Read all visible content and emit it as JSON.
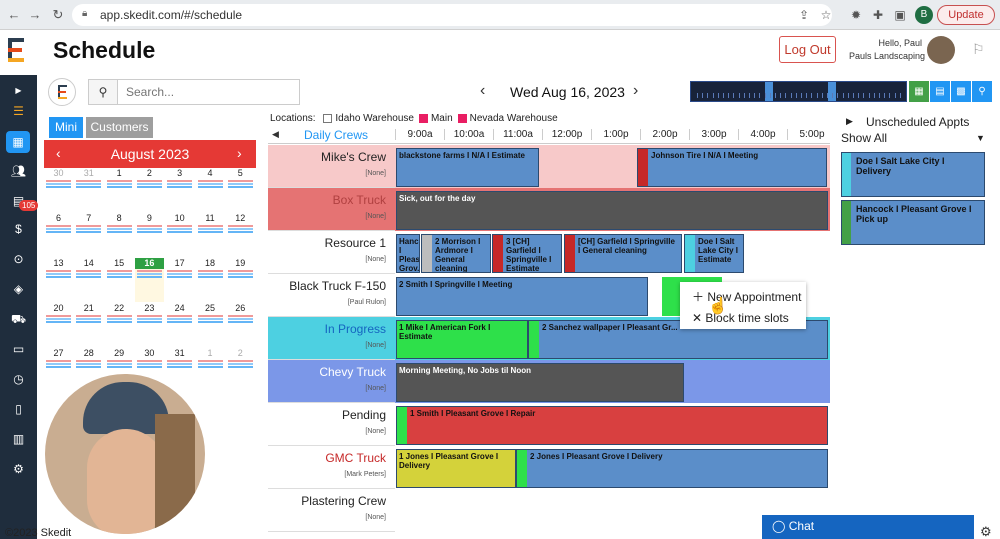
{
  "browser": {
    "url": "app.skedit.com/#/schedule",
    "profile_initial": "B",
    "update_label": "Update"
  },
  "header": {
    "title": "Schedule",
    "logout_label": "Log Out",
    "greeting": "Hello, Paul",
    "company": "Pauls Landscaping"
  },
  "sidebar": {
    "badge": "105"
  },
  "toolbar": {
    "search_placeholder": "Search...",
    "date": "Wed Aug 16, 2023"
  },
  "calendar": {
    "tab_mini": "Mini",
    "tab_customers": "Customers",
    "month": "August 2023",
    "today": "16",
    "days": [
      "30",
      "31",
      "1",
      "2",
      "3",
      "4",
      "5",
      "6",
      "7",
      "8",
      "9",
      "10",
      "11",
      "12",
      "13",
      "14",
      "15",
      "16",
      "17",
      "18",
      "19",
      "20",
      "21",
      "22",
      "23",
      "24",
      "25",
      "26",
      "27",
      "28",
      "29",
      "30",
      "31",
      "1",
      "2"
    ]
  },
  "locations": {
    "label": "Locations:",
    "items": [
      {
        "name": "Idaho Warehouse",
        "checked": false
      },
      {
        "name": "Main",
        "checked": true
      },
      {
        "name": "Nevada Warehouse",
        "checked": true
      }
    ]
  },
  "scheduler": {
    "crews_label": "Daily Crews",
    "hours": [
      "9:00a",
      "10:00a",
      "11:00a",
      "12:00p",
      "1:00p",
      "2:00p",
      "3:00p",
      "4:00p",
      "5:00p"
    ],
    "rows": [
      {
        "name": "Mike's Crew",
        "sub": "[None]",
        "name_color": "#222"
      },
      {
        "name": "Box Truck",
        "sub": "[None]",
        "name_color": "#b04040"
      },
      {
        "name": "Resource 1",
        "sub": "[None]",
        "name_color": "#222"
      },
      {
        "name": "Black Truck F-150",
        "sub": "[Paul Rulon]",
        "name_color": "#222"
      },
      {
        "name": "In Progress",
        "sub": "[None]",
        "name_color": "#1565c0"
      },
      {
        "name": "Chevy Truck",
        "sub": "[None]",
        "name_color": "#fff"
      },
      {
        "name": "Pending",
        "sub": "[None]",
        "name_color": "#222"
      },
      {
        "name": "GMC Truck",
        "sub": "[Mark Peters]",
        "name_color": "#c62828"
      },
      {
        "name": "Plastering Crew",
        "sub": "[None]",
        "name_color": "#222"
      }
    ],
    "appointments": [
      "blackstone farms I N/A I Estimate",
      "Johnson Tire I N/A I Meeting",
      "Sick, out for the day",
      "Hanc... I Pleas... Grov...",
      "2 Morrison I Ardmore I General cleaning",
      "3 [CH] Garfield I Springville I Estimate",
      "[CH] Garfield I Springville I General cleaning",
      "Doe I Salt Lake City I Estimate",
      "2 Smith I Springville I Meeting",
      "1 Mike I American Fork I Estimate",
      "2 Sanchez wallpaper I Pleasant Gr...",
      "Morning Meeting, No Jobs til Noon",
      "1 Smith I Pleasant Grove I Repair",
      "1 Jones I Pleasant Grove I Delivery",
      "2 Jones I Pleasant Grove I Delivery"
    ]
  },
  "context_menu": {
    "new_appointment": "New Appointment",
    "block_time": "Block time slots"
  },
  "unscheduled": {
    "title": "Unscheduled Appts",
    "filter": "Show All",
    "items": [
      "Doe I Salt Lake City I Delivery",
      "Hancock I Pleasant Grove I Pick up"
    ]
  },
  "footer": {
    "copyright": "©2023 Skedit",
    "chat": "Chat"
  },
  "colors": {
    "primary": "#2196f3",
    "sidebar": "#1f2d3d",
    "calendar_header": "#e53935",
    "appt_blue": "#5b8ec9"
  }
}
